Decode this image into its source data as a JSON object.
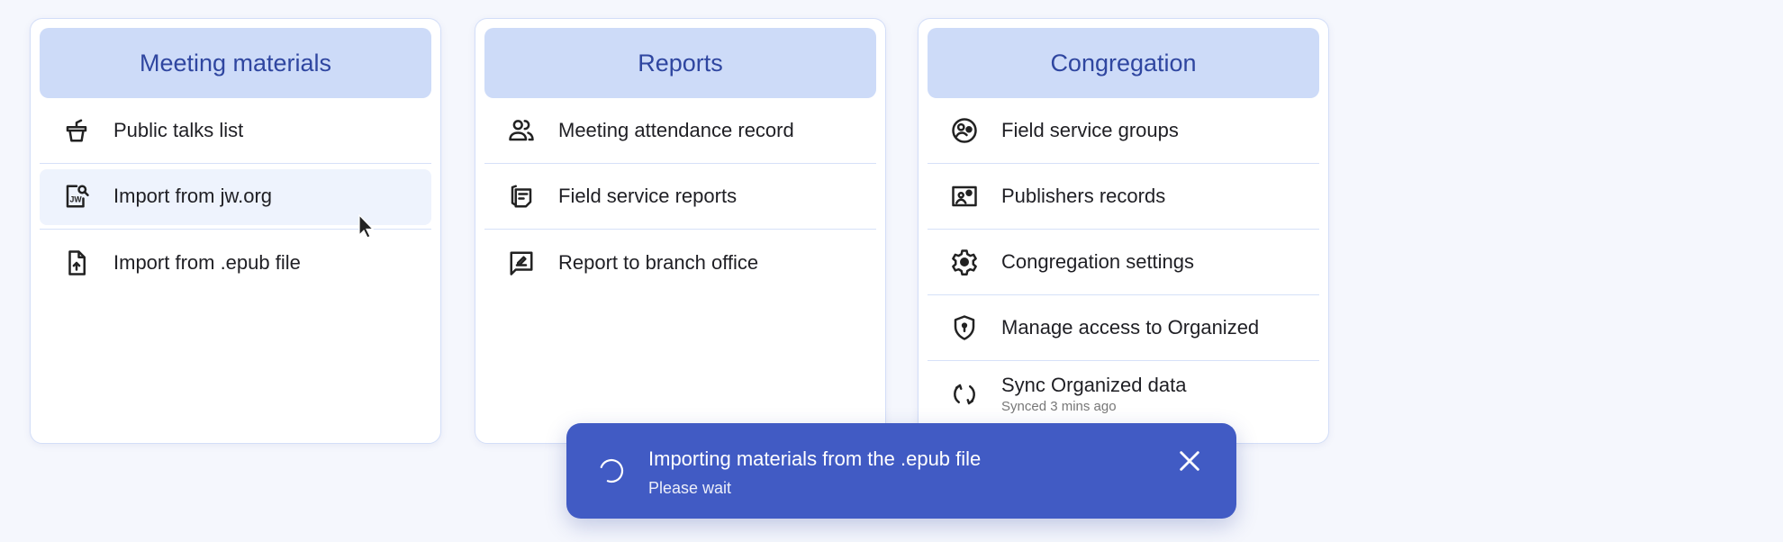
{
  "cards": [
    {
      "title": "Meeting materials",
      "items": [
        {
          "label": "Public talks list",
          "icon": "podium-icon"
        },
        {
          "label": "Import from jw.org",
          "icon": "jw-search-icon"
        },
        {
          "label": "Import from .epub file",
          "icon": "file-upload-icon"
        }
      ]
    },
    {
      "title": "Reports",
      "items": [
        {
          "label": "Meeting attendance record",
          "icon": "people-icon"
        },
        {
          "label": "Field service reports",
          "icon": "reports-icon"
        },
        {
          "label": "Report to branch office",
          "icon": "report-sign-icon"
        }
      ]
    },
    {
      "title": "Congregation",
      "items": [
        {
          "label": "Field service groups",
          "icon": "groups-icon"
        },
        {
          "label": "Publishers records",
          "icon": "id-card-icon"
        },
        {
          "label": "Congregation settings",
          "icon": "gear-icon"
        },
        {
          "label": "Manage access to Organized",
          "icon": "shield-lock-icon"
        },
        {
          "label": "Sync Organized data",
          "sub": "Synced 3 mins ago",
          "icon": "sync-icon"
        }
      ]
    }
  ],
  "toast": {
    "title": "Importing materials from the .epub file",
    "subtitle": "Please wait",
    "icon": "spinner-icon",
    "bg": "#415bc4"
  },
  "colors": {
    "header_bg": "#cddbf8",
    "header_text": "#2f46a0",
    "background": "#f5f7fd"
  }
}
